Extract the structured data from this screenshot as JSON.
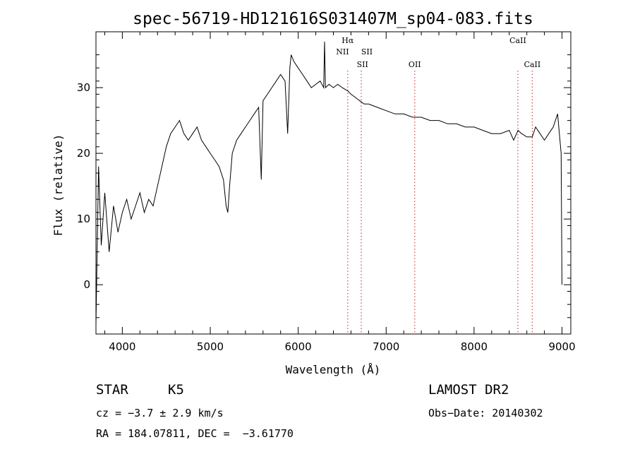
{
  "chart_data": {
    "type": "line",
    "title": "spec-56719-HD121616S031407M_sp04-083.fits",
    "xlabel": "Wavelength (Å)",
    "ylabel": "Flux (relative)",
    "xlim": [
      3700,
      9100
    ],
    "ylim": [
      -7.5,
      38.5
    ],
    "xticks": [
      4000,
      5000,
      6000,
      7000,
      8000,
      9000
    ],
    "yticks": [
      0,
      10,
      20,
      30
    ],
    "grid": false,
    "line_color": "#000000",
    "marker_color": "#d04040",
    "series": [
      {
        "x": [
          3700,
          3730,
          3760,
          3800,
          3850,
          3900,
          3950,
          4000,
          4050,
          4100,
          4150,
          4200,
          4250,
          4300,
          4350,
          4400,
          4450,
          4500,
          4550,
          4600,
          4650,
          4700,
          4750,
          4800,
          4850,
          4900,
          4950,
          5000,
          5050,
          5100,
          5150,
          5180,
          5200,
          5220,
          5250,
          5300,
          5350,
          5400,
          5450,
          5500,
          5550,
          5580,
          5600,
          5650,
          5700,
          5750,
          5800,
          5850,
          5880,
          5893,
          5905,
          5920,
          5950,
          6000,
          6050,
          6100,
          6150,
          6200,
          6250,
          6290,
          6300,
          6310,
          6350,
          6400,
          6450,
          6500,
          6563,
          6600,
          6650,
          6700,
          6750,
          6800,
          6900,
          7000,
          7100,
          7200,
          7300,
          7400,
          7500,
          7600,
          7700,
          7800,
          7900,
          8000,
          8100,
          8200,
          8300,
          8400,
          8450,
          8500,
          8540,
          8600,
          8662,
          8700,
          8750,
          8800,
          8850,
          8900,
          8950,
          8990,
          9000
        ],
        "y": [
          -6,
          18,
          6,
          14,
          5,
          12,
          8,
          11,
          13,
          10,
          12,
          14,
          11,
          13,
          12,
          15,
          18,
          21,
          23,
          24,
          25,
          23,
          22,
          23,
          24,
          22,
          21,
          20,
          19,
          18,
          16,
          12,
          11,
          15,
          20,
          22,
          23,
          24,
          25,
          26,
          27,
          16,
          28,
          29,
          30,
          31,
          32,
          31,
          23,
          28,
          33,
          35,
          34,
          33,
          32,
          31,
          30,
          30.5,
          31,
          30,
          37,
          30,
          30.5,
          30,
          30.5,
          30,
          29.5,
          29,
          28.5,
          28,
          27.5,
          27.5,
          27,
          26.5,
          26,
          26,
          25.5,
          25.5,
          25,
          25,
          24.5,
          24.5,
          24,
          24,
          23.5,
          23,
          23,
          23.5,
          22,
          23.5,
          23,
          22.5,
          22.5,
          24,
          23,
          22,
          23,
          24,
          26,
          20,
          0
        ]
      }
    ],
    "line_markers": [
      {
        "label": "Hα",
        "wavelength": 6563
      },
      {
        "label": "NII",
        "wavelength": 6584
      },
      {
        "label": "SII",
        "wavelength": 6717
      },
      {
        "label": "SII",
        "wavelength": 6731
      },
      {
        "label": "OII",
        "wavelength": 7325
      },
      {
        "label": "CaII",
        "wavelength": 8498
      },
      {
        "label": "CaII",
        "wavelength": 8662
      }
    ]
  },
  "info": {
    "class": "STAR",
    "subclass": "K5",
    "survey": "LAMOST DR2",
    "cz": "cz = −3.7 ± 2.9 km/s",
    "obs_date": "Obs−Date: 20140302",
    "radec": "RA = 184.07811, DEC =  −3.61770"
  }
}
